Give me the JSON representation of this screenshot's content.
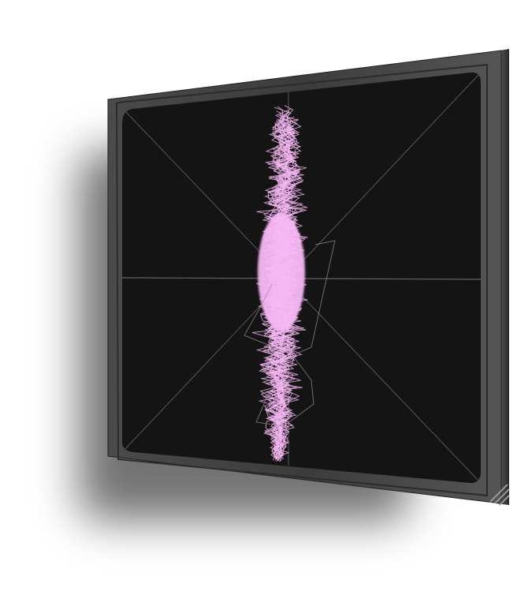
{
  "scope": {
    "type": "vectorscope",
    "trace_color": "#f7b8f4",
    "graticule_color": "#6a5a68",
    "screen_color": "#141414",
    "bezel_color": "#3a3a3a"
  },
  "icons": {
    "resize_grip": "resize-grip-icon"
  }
}
